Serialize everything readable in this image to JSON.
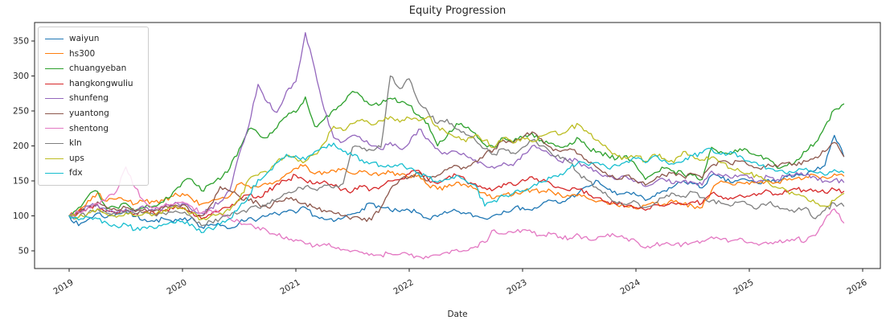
{
  "figure": {
    "title": "Equity Progression",
    "xlabel": "Date"
  },
  "chart_data": {
    "type": "line",
    "title": "Equity Progression",
    "xlabel": "Date",
    "ylabel": "",
    "x_start": "2019-01",
    "x_interval": "monthly",
    "x_tick_labels": [
      "2019",
      "2020",
      "2021",
      "2022",
      "2023",
      "2024",
      "2025",
      "2026"
    ],
    "y_ticks": [
      50,
      100,
      150,
      200,
      250,
      300,
      350
    ],
    "ylim": [
      25,
      376
    ],
    "grid": false,
    "legend_position": "upper-left",
    "series": [
      {
        "name": "waiyun",
        "color": "#1f77b4",
        "values": [
          100,
          86,
          95,
          104,
          98,
          103,
          106,
          99,
          95,
          92,
          96,
          91,
          94,
          98,
          84,
          88,
          86,
          82,
          90,
          97,
          95,
          100,
          103,
          106,
          104,
          112,
          100,
          95,
          92,
          97,
          103,
          110,
          118,
          112,
          108,
          106,
          108,
          104,
          96,
          99,
          104,
          107,
          103,
          100,
          96,
          101,
          107,
          110,
          112,
          108,
          116,
          122,
          118,
          126,
          134,
          142,
          150,
          138,
          130,
          134,
          130,
          122,
          128,
          136,
          142,
          150,
          146,
          140,
          158,
          154,
          148,
          152,
          150,
          146,
          152,
          148,
          156,
          160,
          158,
          165,
          172,
          215,
          185
        ]
      },
      {
        "name": "hs300",
        "color": "#ff7f0e",
        "values": [
          100,
          108,
          122,
          133,
          121,
          124,
          122,
          117,
          121,
          120,
          122,
          128,
          132,
          124,
          117,
          121,
          125,
          128,
          146,
          143,
          141,
          145,
          150,
          160,
          168,
          173,
          160,
          163,
          165,
          168,
          160,
          163,
          158,
          160,
          162,
          158,
          155,
          158,
          144,
          138,
          141,
          148,
          144,
          139,
          133,
          125,
          131,
          130,
          134,
          137,
          135,
          136,
          130,
          128,
          131,
          124,
          121,
          117,
          115,
          113,
          110,
          115,
          118,
          117,
          120,
          117,
          114,
          112,
          136,
          150,
          146,
          148,
          145,
          147,
          150,
          148,
          151,
          154,
          156,
          158,
          155,
          160,
          157
        ]
      },
      {
        "name": "chuangyeban",
        "color": "#2ca02c",
        "values": [
          100,
          112,
          128,
          135,
          110,
          112,
          118,
          108,
          112,
          114,
          120,
          134,
          148,
          152,
          136,
          146,
          152,
          168,
          196,
          224,
          218,
          212,
          226,
          242,
          248,
          270,
          228,
          238,
          252,
          262,
          278,
          270,
          258,
          260,
          268,
          262,
          258,
          244,
          232,
          200,
          214,
          232,
          226,
          218,
          202,
          198,
          212,
          206,
          212,
          218,
          208,
          204,
          198,
          204,
          210,
          196,
          192,
          186,
          182,
          186,
          172,
          152,
          162,
          168,
          164,
          160,
          158,
          152,
          198,
          192,
          188,
          196,
          190,
          186,
          182,
          168,
          172,
          180,
          192,
          205,
          228,
          252,
          260
        ]
      },
      {
        "name": "hangkongwuliu",
        "color": "#d62728",
        "values": [
          100,
          105,
          112,
          116,
          107,
          104,
          108,
          103,
          106,
          104,
          107,
          110,
          112,
          106,
          96,
          102,
          108,
          112,
          124,
          130,
          128,
          134,
          146,
          150,
          158,
          150,
          146,
          150,
          143,
          138,
          135,
          142,
          138,
          142,
          150,
          152,
          160,
          165,
          152,
          146,
          154,
          158,
          150,
          146,
          140,
          138,
          146,
          144,
          152,
          156,
          150,
          146,
          140,
          136,
          138,
          130,
          126,
          120,
          116,
          114,
          112,
          108,
          116,
          114,
          118,
          116,
          120,
          118,
          132,
          128,
          126,
          130,
          128,
          132,
          136,
          130,
          134,
          138,
          135,
          137,
          133,
          138,
          135
        ]
      },
      {
        "name": "shunfeng",
        "color": "#9467bd",
        "values": [
          100,
          106,
          114,
          116,
          108,
          105,
          110,
          107,
          112,
          108,
          112,
          116,
          118,
          108,
          104,
          112,
          120,
          136,
          188,
          228,
          288,
          262,
          248,
          278,
          292,
          362,
          310,
          252,
          212,
          206,
          215,
          208,
          200,
          195,
          205,
          196,
          204,
          224,
          210,
          196,
          188,
          192,
          186,
          180,
          172,
          168,
          176,
          172,
          188,
          200,
          194,
          186,
          178,
          182,
          176,
          168,
          162,
          156,
          152,
          156,
          150,
          142,
          148,
          152,
          146,
          150,
          148,
          144,
          164,
          158,
          154,
          158,
          154,
          150,
          156,
          152,
          158,
          162,
          158,
          155,
          150,
          152,
          148
        ]
      },
      {
        "name": "yuantong",
        "color": "#8c564b",
        "values": [
          100,
          104,
          112,
          120,
          112,
          108,
          112,
          106,
          110,
          107,
          112,
          114,
          116,
          104,
          100,
          116,
          142,
          136,
          128,
          122,
          118,
          112,
          120,
          126,
          124,
          118,
          112,
          108,
          104,
          100,
          98,
          94,
          94,
          112,
          138,
          152,
          155,
          162,
          150,
          158,
          166,
          172,
          168,
          178,
          188,
          196,
          208,
          204,
          212,
          220,
          210,
          198,
          192,
          196,
          188,
          176,
          168,
          158,
          152,
          158,
          150,
          144,
          152,
          158,
          162,
          156,
          160,
          154,
          172,
          178,
          174,
          178,
          172,
          168,
          174,
          170,
          176,
          172,
          178,
          184,
          192,
          205,
          185
        ]
      },
      {
        "name": "shentong",
        "color": "#e377c2",
        "values": [
          100,
          105,
          112,
          118,
          126,
          135,
          170,
          140,
          120,
          112,
          114,
          116,
          120,
          113,
          104,
          108,
          103,
          96,
          92,
          88,
          84,
          78,
          72,
          70,
          66,
          60,
          57,
          60,
          55,
          52,
          50,
          48,
          46,
          44,
          46,
          45,
          44,
          42,
          40,
          44,
          48,
          52,
          50,
          56,
          62,
          80,
          74,
          76,
          80,
          76,
          72,
          74,
          70,
          68,
          72,
          66,
          70,
          74,
          70,
          68,
          64,
          54,
          58,
          60,
          58,
          60,
          62,
          64,
          70,
          66,
          64,
          68,
          62,
          58,
          60,
          62,
          66,
          68,
          64,
          72,
          95,
          110,
          90
        ]
      },
      {
        "name": "kln",
        "color": "#7f7f7f",
        "values": [
          100,
          98,
          104,
          110,
          104,
          102,
          106,
          103,
          105,
          102,
          104,
          105,
          104,
          98,
          86,
          92,
          96,
          100,
          104,
          110,
          112,
          118,
          124,
          132,
          136,
          142,
          138,
          144,
          140,
          146,
          198,
          196,
          194,
          198,
          300,
          282,
          296,
          262,
          248,
          232,
          238,
          224,
          216,
          208,
          196,
          188,
          196,
          190,
          198,
          208,
          200,
          190,
          182,
          176,
          160,
          150,
          138,
          128,
          118,
          116,
          120,
          112,
          118,
          126,
          132,
          128,
          134,
          126,
          122,
          118,
          114,
          120,
          116,
          112,
          118,
          114,
          110,
          108,
          112,
          96,
          108,
          118,
          114
        ]
      },
      {
        "name": "ups",
        "color": "#bcbd22",
        "values": [
          100,
          98,
          104,
          110,
          102,
          98,
          104,
          100,
          104,
          102,
          108,
          112,
          110,
          104,
          95,
          100,
          104,
          108,
          122,
          152,
          158,
          162,
          178,
          186,
          182,
          178,
          188,
          204,
          228,
          222,
          232,
          238,
          230,
          236,
          242,
          234,
          240,
          236,
          242,
          228,
          218,
          212,
          206,
          216,
          208,
          198,
          212,
          204,
          212,
          206,
          214,
          220,
          216,
          226,
          230,
          218,
          208,
          196,
          186,
          182,
          186,
          178,
          188,
          182,
          176,
          192,
          186,
          180,
          184,
          176,
          168,
          164,
          160,
          156,
          148,
          140,
          136,
          130,
          126,
          118,
          114,
          122,
          132
        ]
      },
      {
        "name": "fdx",
        "color": "#17becf",
        "values": [
          100,
          94,
          98,
          96,
          90,
          85,
          88,
          80,
          84,
          82,
          88,
          90,
          92,
          88,
          76,
          82,
          88,
          96,
          112,
          128,
          152,
          162,
          176,
          188,
          186,
          180,
          192,
          198,
          204,
          192,
          186,
          180,
          176,
          172,
          170,
          174,
          168,
          160,
          156,
          148,
          152,
          158,
          150,
          144,
          114,
          122,
          128,
          132,
          136,
          142,
          148,
          154,
          160,
          168,
          178,
          172,
          176,
          168,
          172,
          178,
          182,
          176,
          186,
          180,
          174,
          178,
          186,
          190,
          196,
          188,
          192,
          186,
          178,
          172,
          168,
          164,
          160,
          164,
          168,
          162,
          158,
          166,
          162
        ]
      }
    ]
  }
}
